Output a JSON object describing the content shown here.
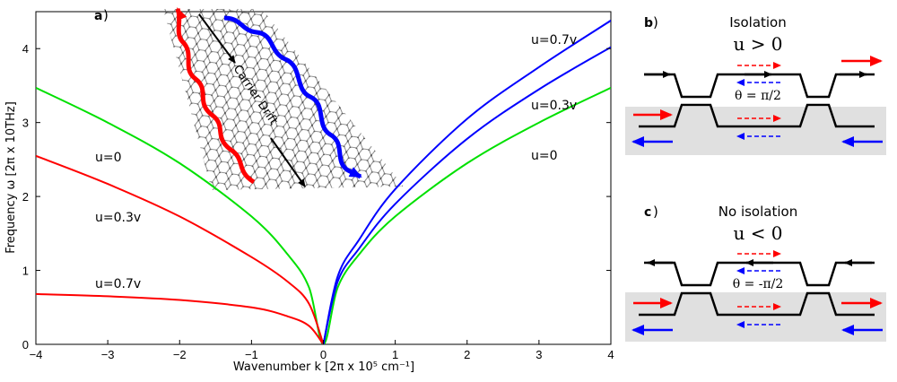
{
  "figure": {
    "panel_a": {
      "letter": "a",
      "inset_label": "Carrier Drift",
      "chart_data": {
        "type": "line",
        "xlabel": "Wavenumber k [2π x 10⁵ cm⁻¹]",
        "ylabel": "Frequency ω [2π x 10THz]",
        "xlim": [
          -4,
          4
        ],
        "ylim": [
          0,
          4.5
        ],
        "xticks": [
          -4,
          -3,
          -2,
          -1,
          0,
          1,
          2,
          3,
          4
        ],
        "xtick_labels": [
          "−4",
          "−3",
          "−2",
          "−1",
          "0",
          "1",
          "2",
          "3",
          "4"
        ],
        "yticks": [
          0,
          1,
          2,
          3,
          4
        ],
        "ytick_labels": [
          "0",
          "1",
          "2",
          "3",
          "4"
        ],
        "grid": false,
        "series": [
          {
            "name": "u=0",
            "color": "#00e000",
            "x": [
              -4,
              -3,
              -2,
              -1,
              -0.5,
              -0.2,
              0,
              0.2,
              0.5,
              1,
              2,
              3,
              4
            ],
            "y": [
              3.47,
              3.0,
              2.45,
              1.73,
              1.22,
              0.77,
              0,
              0.77,
              1.22,
              1.73,
              2.45,
              3.0,
              3.47
            ]
          },
          {
            "name": "u=0.3v",
            "color": "#ff0000",
            "x": [
              -4,
              -3,
              -2,
              -1,
              -0.5,
              -0.2,
              0
            ],
            "y": [
              2.55,
              2.17,
              1.73,
              1.18,
              0.85,
              0.55,
              0
            ]
          },
          {
            "name": "u=0.3v",
            "color": "#0000ff",
            "x": [
              0,
              0.2,
              0.5,
              1,
              2,
              3,
              4
            ],
            "y": [
              0,
              0.85,
              1.3,
              1.9,
              2.78,
              3.45,
              4.02
            ]
          },
          {
            "name": "u=0.7v",
            "color": "#ff0000",
            "x": [
              -4,
              -3,
              -2,
              -1,
              -0.5,
              -0.2,
              0
            ],
            "y": [
              0.68,
              0.65,
              0.6,
              0.5,
              0.38,
              0.25,
              0
            ]
          },
          {
            "name": "u=0.7v",
            "color": "#0000ff",
            "x": [
              0,
              0.2,
              0.5,
              1,
              2,
              3,
              4
            ],
            "y": [
              0,
              0.92,
              1.42,
              2.1,
              3.05,
              3.75,
              4.38
            ]
          }
        ],
        "annotations": [
          "u=0",
          "u=0.3v",
          "u=0.7v",
          "u=0.7v",
          "u=0.3v",
          "u=0"
        ]
      }
    },
    "panel_b": {
      "letter": "b",
      "title": "Isolation",
      "condition": "u > 0",
      "theta": "θ = π/2"
    },
    "panel_c": {
      "letter": "c",
      "title": "No isolation",
      "condition": "u < 0",
      "theta": "θ = -π/2"
    },
    "colors": {
      "green": "#00e000",
      "red": "#ff0000",
      "blue": "#0000ff",
      "shade": "#e0e0e0"
    }
  }
}
